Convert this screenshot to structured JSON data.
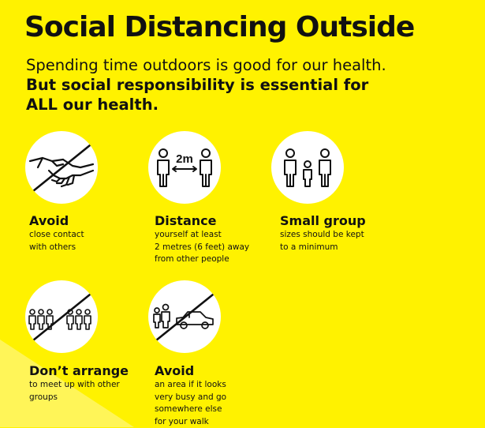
{
  "poster": {
    "title": "Social Distancing Outside",
    "subtitle_line1": "Spending time outdoors is good for our health.",
    "subtitle_line2": "But social responsibility is essential for",
    "subtitle_line3": "ALL our health."
  },
  "colors": {
    "background": "#fff200",
    "circle": "#ffffff",
    "text": "#111111"
  },
  "items": [
    {
      "icon": "handshake-crossed-icon",
      "title": "Avoid",
      "text": "close contact\nwith others"
    },
    {
      "icon": "two-metres-distance-icon",
      "title": "Distance",
      "text": "yourself at least\n2 metres (6 feet) away\nfrom other people",
      "distance_label": "2m"
    },
    {
      "icon": "small-group-icon",
      "title": "Small group",
      "text": "sizes should be kept\nto a minimum"
    },
    {
      "icon": "crowd-crossed-icon",
      "title": "Don’t arrange",
      "text": "to meet up with other\ngroups"
    },
    {
      "icon": "busy-area-crossed-icon",
      "title": "Avoid",
      "text": "an area if it looks\nvery busy and go\nsomewhere else\nfor your walk"
    }
  ]
}
